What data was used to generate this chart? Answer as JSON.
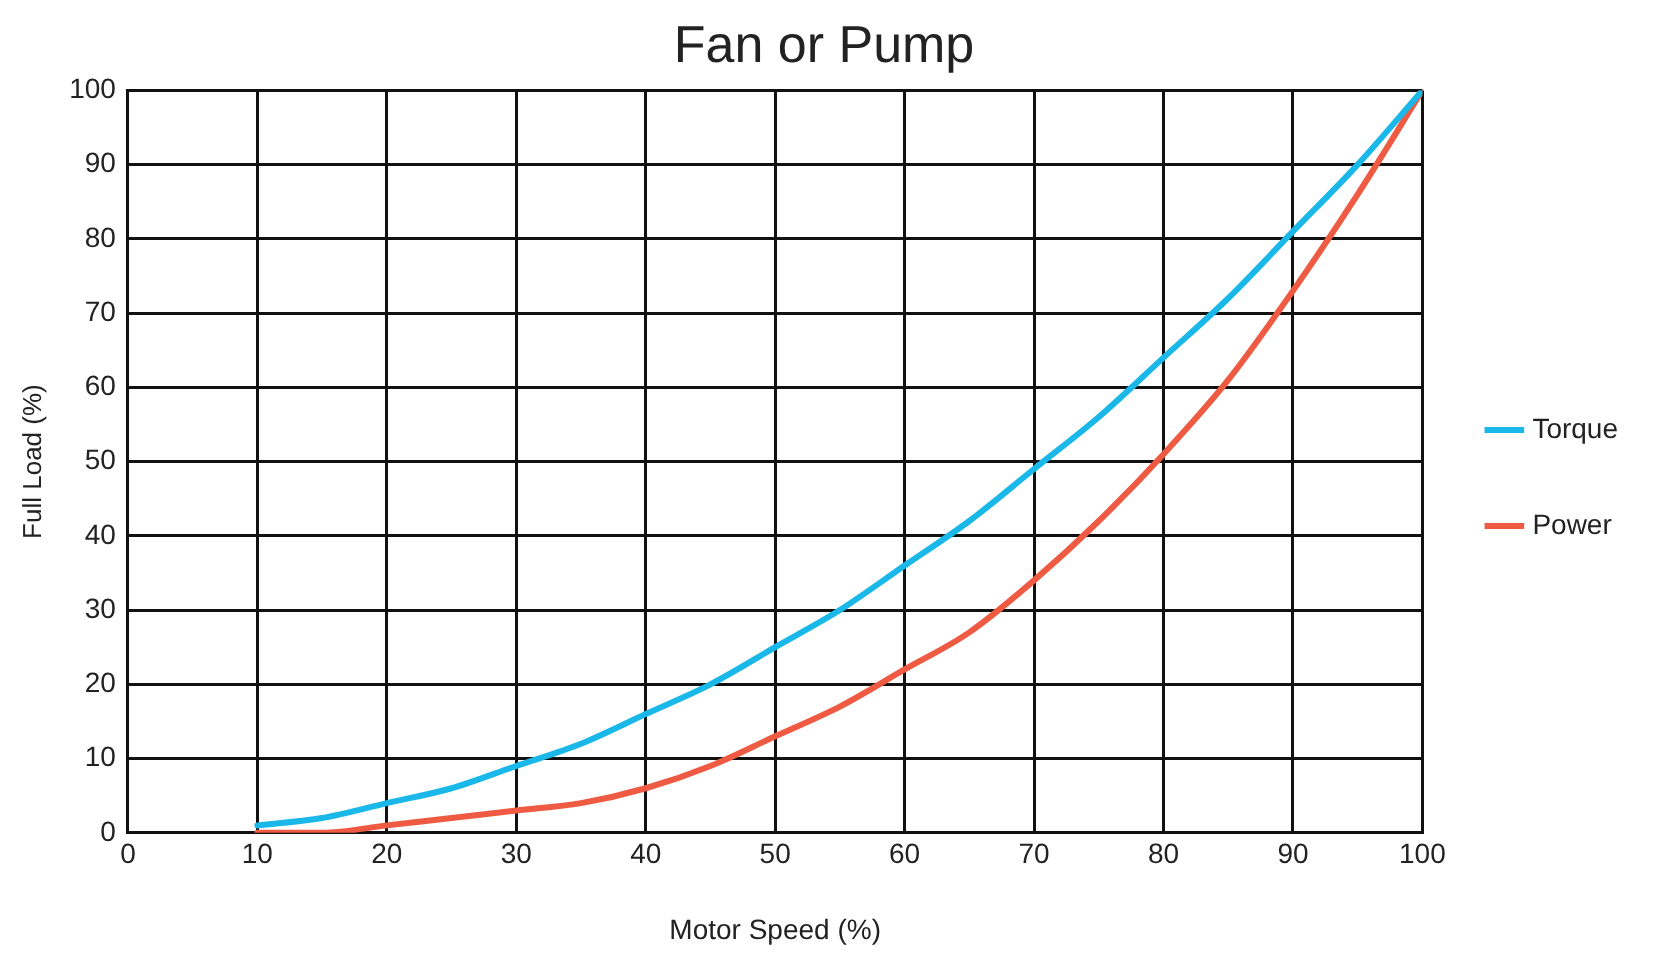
{
  "chart_data": {
    "type": "line",
    "title": "Fan or Pump",
    "xlabel": "Motor Speed (%)",
    "ylabel": "Full Load (%)",
    "x": [
      10,
      15,
      20,
      25,
      30,
      35,
      40,
      45,
      50,
      55,
      60,
      65,
      70,
      75,
      80,
      85,
      90,
      95,
      100
    ],
    "series": [
      {
        "name": "Torque",
        "color": "#1ab8e8",
        "values": [
          1,
          2,
          4,
          6,
          9,
          12,
          16,
          20,
          25,
          30,
          36,
          42,
          49,
          56,
          64,
          72,
          81,
          90,
          100
        ]
      },
      {
        "name": "Power",
        "color": "#ef5a42",
        "values": [
          0,
          0,
          1,
          2,
          3,
          4,
          6,
          9,
          13,
          17,
          22,
          27,
          34,
          42,
          51,
          61,
          73,
          86,
          100
        ]
      }
    ],
    "xlim": [
      0,
      100
    ],
    "xticks": [
      0,
      10,
      20,
      30,
      40,
      50,
      60,
      70,
      80,
      90,
      100
    ],
    "ylim": [
      0,
      100
    ],
    "yticks": [
      0,
      10,
      20,
      30,
      40,
      50,
      60,
      70,
      80,
      90,
      100
    ],
    "grid": true,
    "legend": "right",
    "marker": "none",
    "line_style": "solid"
  }
}
